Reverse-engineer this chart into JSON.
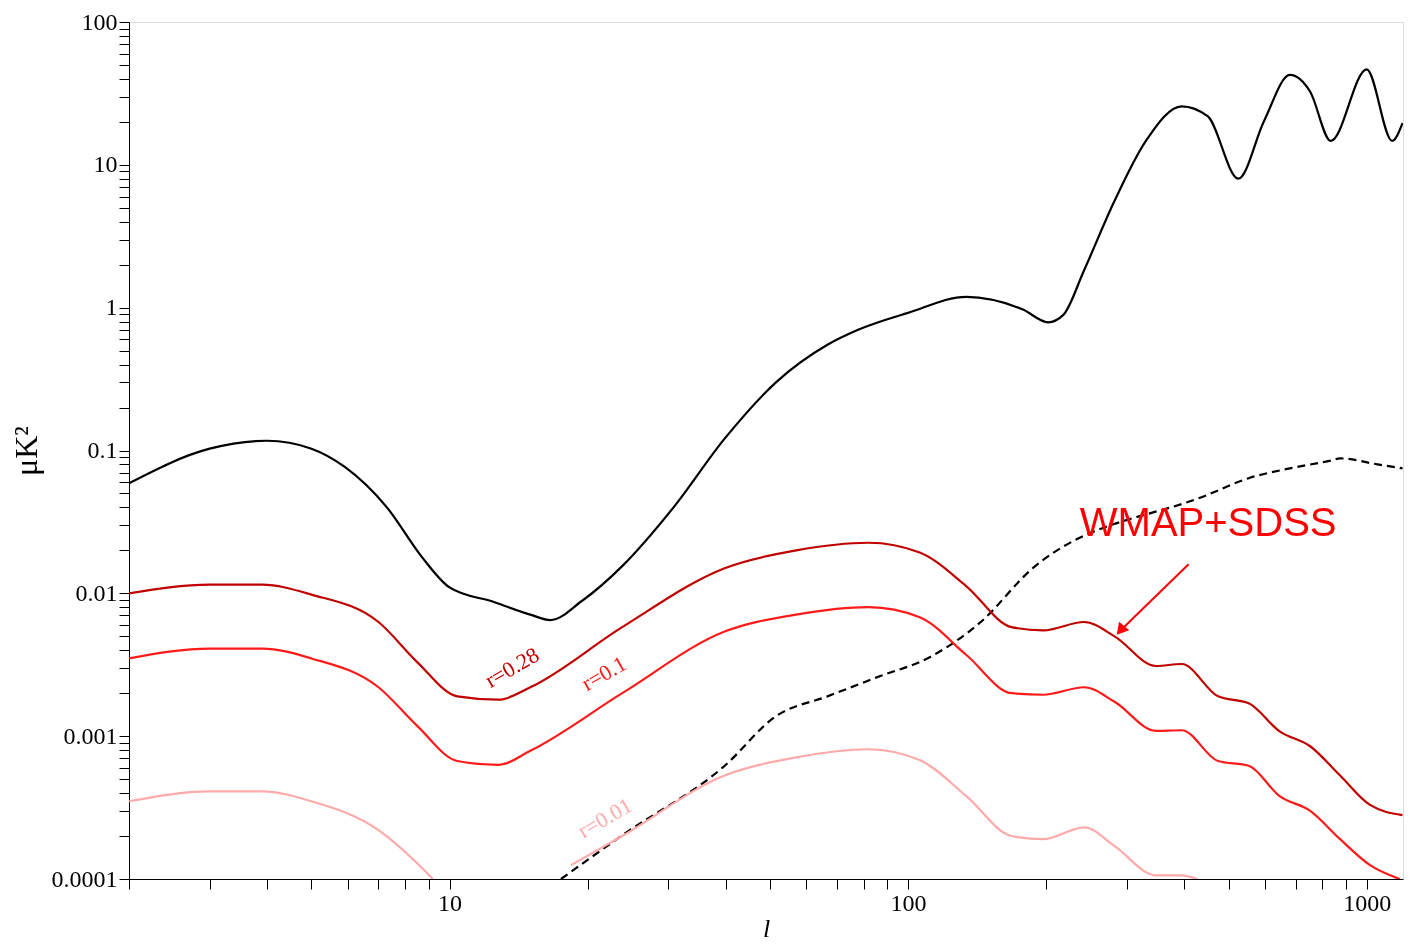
{
  "chart_data": {
    "type": "line",
    "xlabel": "l",
    "ylabel": "μK²",
    "log": "xy",
    "grid": false,
    "xlim": [
      2,
      1200
    ],
    "ylim": [
      0.0001,
      100
    ],
    "xticks": [
      {
        "value": 2,
        "label": null
      },
      {
        "value": 3,
        "label": null
      },
      {
        "value": 4,
        "label": null
      },
      {
        "value": 5,
        "label": null
      },
      {
        "value": 6,
        "label": null
      },
      {
        "value": 7,
        "label": null
      },
      {
        "value": 8,
        "label": null
      },
      {
        "value": 9,
        "label": null
      },
      10,
      {
        "value": 20,
        "label": null
      },
      {
        "value": 30,
        "label": null
      },
      {
        "value": 40,
        "label": null
      },
      {
        "value": 50,
        "label": null
      },
      {
        "value": 60,
        "label": null
      },
      {
        "value": 70,
        "label": null
      },
      {
        "value": 80,
        "label": null
      },
      {
        "value": 90,
        "label": null
      },
      100,
      {
        "value": 200,
        "label": null
      },
      {
        "value": 300,
        "label": null
      },
      {
        "value": 400,
        "label": null
      },
      {
        "value": 500,
        "label": null
      },
      {
        "value": 600,
        "label": null
      },
      {
        "value": 700,
        "label": null
      },
      {
        "value": 800,
        "label": null
      },
      {
        "value": 900,
        "label": null
      },
      {
        "value": 1000,
        "label": "1000"
      }
    ],
    "yticks": [
      0.0001,
      {
        "value": 0.0002,
        "label": null
      },
      {
        "value": 0.0003,
        "label": null
      },
      {
        "value": 0.0004,
        "label": null
      },
      {
        "value": 0.0005,
        "label": null
      },
      {
        "value": 0.0006,
        "label": null
      },
      {
        "value": 0.0007,
        "label": null
      },
      {
        "value": 0.0008,
        "label": null
      },
      {
        "value": 0.0009,
        "label": null
      },
      0.001,
      {
        "value": 0.002,
        "label": null
      },
      {
        "value": 0.003,
        "label": null
      },
      {
        "value": 0.004,
        "label": null
      },
      {
        "value": 0.005,
        "label": null
      },
      {
        "value": 0.006,
        "label": null
      },
      {
        "value": 0.007,
        "label": null
      },
      {
        "value": 0.008,
        "label": null
      },
      {
        "value": 0.009,
        "label": null
      },
      0.01,
      {
        "value": 0.02,
        "label": null
      },
      {
        "value": 0.03,
        "label": null
      },
      {
        "value": 0.04,
        "label": null
      },
      {
        "value": 0.05,
        "label": null
      },
      {
        "value": 0.06,
        "label": null
      },
      {
        "value": 0.07,
        "label": null
      },
      {
        "value": 0.08,
        "label": null
      },
      {
        "value": 0.09,
        "label": null
      },
      0.1,
      {
        "value": 0.2,
        "label": null
      },
      {
        "value": 0.3,
        "label": null
      },
      {
        "value": 0.4,
        "label": null
      },
      {
        "value": 0.5,
        "label": null
      },
      {
        "value": 0.6,
        "label": null
      },
      {
        "value": 0.7,
        "label": null
      },
      {
        "value": 0.8,
        "label": null
      },
      {
        "value": 0.9,
        "label": null
      },
      1,
      {
        "value": 2,
        "label": null
      },
      {
        "value": 3,
        "label": null
      },
      {
        "value": 4,
        "label": null
      },
      {
        "value": 5,
        "label": null
      },
      {
        "value": 6,
        "label": null
      },
      {
        "value": 7,
        "label": null
      },
      {
        "value": 8,
        "label": null
      },
      {
        "value": 9,
        "label": null
      },
      10,
      {
        "value": 20,
        "label": null
      },
      {
        "value": 30,
        "label": null
      },
      {
        "value": 40,
        "label": null
      },
      {
        "value": 50,
        "label": null
      },
      {
        "value": 60,
        "label": null
      },
      {
        "value": 70,
        "label": null
      },
      {
        "value": 80,
        "label": null
      },
      {
        "value": 90,
        "label": null
      },
      100
    ],
    "series": [
      {
        "color": "#000000",
        "line_style": "solid",
        "x": [
          2,
          3,
          4,
          5,
          5.9,
          7.3,
          8.7,
          10,
          12.5,
          15,
          16.6,
          19.4,
          23.8,
          30.8,
          39.8,
          51.5,
          66.7,
          77.8,
          100,
          134,
          178,
          202,
          218,
          242,
          282,
          330,
          395,
          450,
          525,
          597,
          680,
          753,
          835,
          1000,
          1137,
          1197
        ],
        "values": [
          0.059,
          0.103,
          0.117,
          0.103,
          0.077,
          0.04,
          0.018,
          0.011,
          0.0087,
          0.0071,
          0.0065,
          0.0088,
          0.0155,
          0.04,
          0.121,
          0.3,
          0.55,
          0.7,
          0.92,
          1.19,
          0.97,
          0.79,
          0.89,
          1.83,
          5.6,
          14.7,
          25.7,
          21.9,
          8,
          20.2,
          42.6,
          32.5,
          14.7,
          46.6,
          14.7,
          19.6
        ]
      },
      {
        "color": "#000000",
        "line_style": "dashed",
        "x": [
          17.5,
          23.8,
          39.8,
          51.5,
          66.7,
          86,
          112,
          144,
          187,
          450,
          553,
          680,
          835,
          875,
          1055,
          1197
        ],
        "values": [
          0.0001,
          0.000202,
          0.00062,
          0.00138,
          0.0019,
          0.0026,
          0.0036,
          0.0063,
          0.015,
          0.049,
          0.064,
          0.075,
          0.085,
          0.088,
          0.08,
          0.075
        ]
      },
      {
        "name": "r=0.28",
        "color": "#c00000",
        "line_style": "solid",
        "x": [
          2,
          3,
          3.9,
          5,
          7,
          8.5,
          10.4,
          12.8,
          15,
          23.8,
          39.8,
          57,
          82,
          106,
          134,
          168,
          197,
          242,
          282,
          347,
          395,
          474,
          553,
          646,
          753,
          875,
          1017,
          1197
        ],
        "values": [
          0.01,
          0.0115,
          0.0115,
          0.0098,
          0.0063,
          0.0033,
          0.0019,
          0.0018,
          0.0022,
          0.0058,
          0.015,
          0.02,
          0.0226,
          0.0193,
          0.0112,
          0.0058,
          0.0055,
          0.0063,
          0.005,
          0.0031,
          0.0032,
          0.0019,
          0.0017,
          0.00108,
          0.00085,
          0.00053,
          0.00033,
          0.00028
        ]
      },
      {
        "name": "r=0.1",
        "color": "#ff1a1a",
        "line_style": "solid",
        "x": [
          2,
          3,
          3.9,
          5,
          7,
          8.5,
          10.4,
          12.8,
          15,
          23.8,
          39.8,
          57,
          82,
          106,
          134,
          168,
          197,
          242,
          282,
          347,
          395,
          474,
          553,
          646,
          753,
          875,
          1017,
          1180
        ],
        "values": [
          0.0035,
          0.0041,
          0.0041,
          0.0035,
          0.0022,
          0.00118,
          0.00067,
          0.00063,
          0.00079,
          0.002,
          0.0054,
          0.0071,
          0.008,
          0.0068,
          0.0037,
          0.002,
          0.00195,
          0.0022,
          0.00174,
          0.00109,
          0.0011,
          0.00067,
          0.00062,
          0.00038,
          0.0003,
          0.00019,
          0.000125,
          0.0001
        ]
      },
      {
        "name": "r=0.01",
        "color": "#ffaaaa",
        "line_style": "solid",
        "x": [
          2,
          3,
          3.9,
          5,
          7,
          8.5,
          9.2,
          12,
          18.4,
          23.8,
          39.8,
          57,
          82,
          106,
          134,
          168,
          197,
          242,
          282,
          347,
          395,
          427
        ],
        "values": [
          0.00035,
          0.00041,
          0.00041,
          0.00035,
          0.00022,
          0.000129,
          0.0001,
          null,
          0.000125,
          0.0002,
          0.00053,
          0.00071,
          0.00081,
          0.00068,
          0.00038,
          0.0002,
          0.00019,
          0.00023,
          0.00017,
          0.000106,
          0.000106,
          0.0001
        ]
      }
    ],
    "annotations": [
      {
        "text": "WMAP+SDSS",
        "x": 282,
        "y": 0.005
      }
    ]
  }
}
